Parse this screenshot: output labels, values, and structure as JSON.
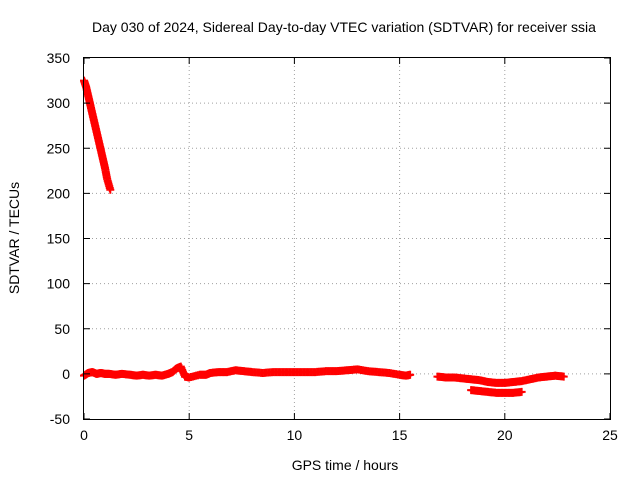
{
  "chart_data": {
    "type": "scatter",
    "title": "Day 030 of 2024, Sidereal Day-to-day VTEC variation (SDTVAR) for receiver ssia",
    "xlabel": "GPS time / hours",
    "ylabel": "SDTVAR / TECUs",
    "xlim": [
      0,
      25
    ],
    "ylim": [
      -50,
      350
    ],
    "xticks": [
      "0",
      "5",
      "10",
      "15",
      "20",
      "25"
    ],
    "yticks": [
      "-50",
      "0",
      "50",
      "100",
      "150",
      "200",
      "250",
      "300",
      "350"
    ],
    "grid": true,
    "marker": "+",
    "color": "#ff0000",
    "series": [
      {
        "points": [
          [
            0.0,
            325
          ],
          [
            0.1,
            318
          ],
          [
            0.2,
            308
          ],
          [
            0.3,
            298
          ],
          [
            0.4,
            288
          ],
          [
            0.5,
            278
          ],
          [
            0.6,
            268
          ],
          [
            0.7,
            258
          ],
          [
            0.8,
            248
          ],
          [
            0.9,
            238
          ],
          [
            1.0,
            228
          ],
          [
            1.1,
            216
          ],
          [
            1.25,
            204
          ],
          [
            0.0,
            -2
          ],
          [
            0.2,
            1
          ],
          [
            0.4,
            2
          ],
          [
            0.6,
            0
          ],
          [
            0.8,
            1
          ],
          [
            1.0,
            0
          ],
          [
            1.2,
            0
          ],
          [
            1.5,
            -1
          ],
          [
            1.8,
            0
          ],
          [
            2.2,
            -1
          ],
          [
            2.5,
            -2
          ],
          [
            2.8,
            -1
          ],
          [
            3.1,
            -2
          ],
          [
            3.4,
            -1
          ],
          [
            3.7,
            -2
          ],
          [
            4.0,
            0
          ],
          [
            4.2,
            2
          ],
          [
            4.4,
            6
          ],
          [
            4.6,
            8
          ],
          [
            4.8,
            -3
          ],
          [
            5.0,
            -4
          ],
          [
            5.5,
            -1
          ],
          [
            5.8,
            -1
          ],
          [
            6.0,
            1
          ],
          [
            6.4,
            2
          ],
          [
            6.8,
            2
          ],
          [
            7.2,
            4
          ],
          [
            7.6,
            3
          ],
          [
            8.0,
            2
          ],
          [
            8.5,
            1
          ],
          [
            9.0,
            2
          ],
          [
            9.5,
            2
          ],
          [
            10.0,
            2
          ],
          [
            10.5,
            2
          ],
          [
            11.0,
            2
          ],
          [
            11.5,
            3
          ],
          [
            12.0,
            3
          ],
          [
            12.5,
            4
          ],
          [
            13.0,
            5
          ],
          [
            13.5,
            3
          ],
          [
            14.0,
            2
          ],
          [
            14.5,
            1
          ],
          [
            15.0,
            -1
          ],
          [
            15.3,
            -2
          ],
          [
            15.5,
            -1
          ],
          [
            16.8,
            -3
          ],
          [
            17.2,
            -4
          ],
          [
            17.6,
            -4
          ],
          [
            18.0,
            -5
          ],
          [
            18.4,
            -6
          ],
          [
            18.8,
            -7
          ],
          [
            19.2,
            -9
          ],
          [
            19.6,
            -10
          ],
          [
            20.0,
            -10
          ],
          [
            20.4,
            -9
          ],
          [
            20.8,
            -8
          ],
          [
            21.2,
            -6
          ],
          [
            21.6,
            -4
          ],
          [
            22.0,
            -3
          ],
          [
            22.4,
            -2
          ],
          [
            22.8,
            -3
          ],
          [
            18.4,
            -18
          ],
          [
            18.8,
            -19
          ],
          [
            19.2,
            -20
          ],
          [
            19.6,
            -21
          ],
          [
            20.0,
            -21
          ],
          [
            20.4,
            -21
          ],
          [
            20.8,
            -20
          ]
        ]
      }
    ]
  }
}
